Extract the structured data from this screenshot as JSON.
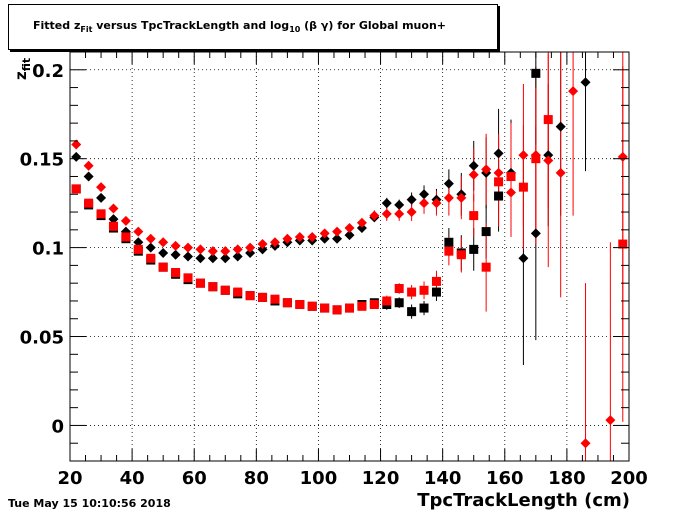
{
  "title_parts": {
    "a": "Fitted  z",
    "a_sub": "Fit",
    "b": "  versus TpcTrackLength and log",
    "b_sub": "10",
    "c": " (β γ) for Global muon+"
  },
  "timestamp": "Tue May 15 10:10:56 2018",
  "chart_data": {
    "type": "scatter",
    "title": "Fitted  zFit  versus TpcTrackLength and log10 (β γ) for Global muon+",
    "xlabel": "TpcTrackLength (cm)",
    "ylabel": "z_fit",
    "xlim": [
      20,
      200
    ],
    "ylim": [
      -0.02,
      0.21
    ],
    "x_ticks": [
      20,
      40,
      60,
      80,
      100,
      120,
      140,
      160,
      180,
      200
    ],
    "x_tick_labels": [
      "20",
      "40",
      "60",
      "80",
      "100",
      "120",
      "140",
      "160",
      "180",
      "200"
    ],
    "y_ticks": [
      0,
      0.05,
      0.1,
      0.15,
      0.2
    ],
    "y_tick_labels": [
      "0",
      "0.05",
      "0.1",
      "0.15",
      "0.2"
    ],
    "grid": true,
    "series": [
      {
        "marker": "diamond",
        "color": "#000000",
        "points": [
          [
            22,
            0.151,
            0.001
          ],
          [
            26,
            0.14,
            0.001
          ],
          [
            30,
            0.128,
            0.001
          ],
          [
            34,
            0.116,
            0.001
          ],
          [
            38,
            0.109,
            0.001
          ],
          [
            42,
            0.103,
            0.001
          ],
          [
            46,
            0.1,
            0.001
          ],
          [
            50,
            0.097,
            0.001
          ],
          [
            54,
            0.096,
            0.001
          ],
          [
            58,
            0.095,
            0.001
          ],
          [
            62,
            0.094,
            0.001
          ],
          [
            66,
            0.094,
            0.001
          ],
          [
            70,
            0.094,
            0.001
          ],
          [
            74,
            0.095,
            0.001
          ],
          [
            78,
            0.097,
            0.001
          ],
          [
            82,
            0.099,
            0.001
          ],
          [
            86,
            0.101,
            0.001
          ],
          [
            90,
            0.103,
            0.001
          ],
          [
            94,
            0.104,
            0.001
          ],
          [
            98,
            0.104,
            0.001
          ],
          [
            102,
            0.105,
            0.001
          ],
          [
            106,
            0.105,
            0.001
          ],
          [
            110,
            0.107,
            0.001
          ],
          [
            114,
            0.111,
            0.002
          ],
          [
            118,
            0.117,
            0.002
          ],
          [
            122,
            0.125,
            0.003
          ],
          [
            126,
            0.124,
            0.003
          ],
          [
            130,
            0.127,
            0.004
          ],
          [
            134,
            0.13,
            0.005
          ],
          [
            138,
            0.127,
            0.006
          ],
          [
            142,
            0.136,
            0.008
          ],
          [
            146,
            0.13,
            0.012
          ],
          [
            150,
            0.146,
            0.014
          ],
          [
            154,
            0.142,
            0.02
          ],
          [
            158,
            0.153,
            0.025
          ],
          [
            162,
            0.142,
            0.03
          ],
          [
            166,
            0.094,
            0.06
          ],
          [
            170,
            0.108,
            0.06
          ],
          [
            174,
            0.152,
            0.04
          ],
          [
            178,
            0.168,
            0.05
          ],
          [
            186,
            0.193,
            0.05
          ]
        ]
      },
      {
        "marker": "diamond",
        "color": "#ff0000",
        "points": [
          [
            22,
            0.158,
            0.001
          ],
          [
            26,
            0.146,
            0.001
          ],
          [
            30,
            0.134,
            0.001
          ],
          [
            34,
            0.122,
            0.001
          ],
          [
            38,
            0.115,
            0.001
          ],
          [
            42,
            0.109,
            0.001
          ],
          [
            46,
            0.105,
            0.001
          ],
          [
            50,
            0.103,
            0.001
          ],
          [
            54,
            0.101,
            0.001
          ],
          [
            58,
            0.1,
            0.001
          ],
          [
            62,
            0.099,
            0.001
          ],
          [
            66,
            0.098,
            0.001
          ],
          [
            70,
            0.098,
            0.001
          ],
          [
            74,
            0.099,
            0.001
          ],
          [
            78,
            0.1,
            0.001
          ],
          [
            82,
            0.102,
            0.001
          ],
          [
            86,
            0.103,
            0.001
          ],
          [
            90,
            0.105,
            0.001
          ],
          [
            94,
            0.106,
            0.001
          ],
          [
            98,
            0.106,
            0.001
          ],
          [
            102,
            0.108,
            0.001
          ],
          [
            106,
            0.109,
            0.001
          ],
          [
            110,
            0.111,
            0.002
          ],
          [
            114,
            0.114,
            0.002
          ],
          [
            118,
            0.118,
            0.003
          ],
          [
            122,
            0.119,
            0.004
          ],
          [
            126,
            0.119,
            0.004
          ],
          [
            130,
            0.12,
            0.005
          ],
          [
            134,
            0.125,
            0.006
          ],
          [
            138,
            0.125,
            0.007
          ],
          [
            142,
            0.128,
            0.01
          ],
          [
            146,
            0.128,
            0.012
          ],
          [
            150,
            0.141,
            0.015
          ],
          [
            154,
            0.144,
            0.02
          ],
          [
            158,
            0.142,
            0.022
          ],
          [
            162,
            0.131,
            0.025
          ],
          [
            166,
            0.152,
            0.04
          ],
          [
            170,
            0.152,
            0.05
          ],
          [
            174,
            0.149,
            0.06
          ],
          [
            178,
            0.142,
            0.07
          ],
          [
            182,
            0.188,
            0.07
          ],
          [
            186,
            -0.01,
            0.09
          ],
          [
            194,
            0.003,
            0.1
          ],
          [
            198,
            0.151,
            0.1
          ]
        ]
      },
      {
        "marker": "square",
        "color": "#000000",
        "points": [
          [
            22,
            0.133,
            0.001
          ],
          [
            26,
            0.124,
            0.001
          ],
          [
            30,
            0.118,
            0.001
          ],
          [
            34,
            0.111,
            0.001
          ],
          [
            38,
            0.105,
            0.001
          ],
          [
            42,
            0.098,
            0.001
          ],
          [
            46,
            0.093,
            0.001
          ],
          [
            50,
            0.089,
            0.001
          ],
          [
            54,
            0.085,
            0.001
          ],
          [
            58,
            0.082,
            0.001
          ],
          [
            62,
            0.08,
            0.001
          ],
          [
            66,
            0.078,
            0.001
          ],
          [
            70,
            0.076,
            0.001
          ],
          [
            74,
            0.074,
            0.001
          ],
          [
            78,
            0.073,
            0.001
          ],
          [
            82,
            0.072,
            0.001
          ],
          [
            86,
            0.07,
            0.001
          ],
          [
            90,
            0.069,
            0.001
          ],
          [
            94,
            0.068,
            0.001
          ],
          [
            98,
            0.067,
            0.001
          ],
          [
            102,
            0.066,
            0.001
          ],
          [
            106,
            0.065,
            0.001
          ],
          [
            110,
            0.066,
            0.001
          ],
          [
            114,
            0.068,
            0.002
          ],
          [
            118,
            0.069,
            0.002
          ],
          [
            122,
            0.068,
            0.003
          ],
          [
            126,
            0.069,
            0.003
          ],
          [
            130,
            0.064,
            0.004
          ],
          [
            134,
            0.066,
            0.004
          ],
          [
            138,
            0.075,
            0.005
          ],
          [
            142,
            0.103,
            0.008
          ],
          [
            146,
            0.097,
            0.01
          ],
          [
            150,
            0.099,
            0.012
          ],
          [
            154,
            0.109,
            0.015
          ],
          [
            158,
            0.129,
            0.02
          ],
          [
            162,
            0.14,
            0.03
          ],
          [
            170,
            0.198,
            0.04
          ]
        ]
      },
      {
        "marker": "square",
        "color": "#ff0000",
        "points": [
          [
            22,
            0.133,
            0.001
          ],
          [
            26,
            0.125,
            0.001
          ],
          [
            30,
            0.119,
            0.001
          ],
          [
            34,
            0.112,
            0.001
          ],
          [
            38,
            0.106,
            0.001
          ],
          [
            42,
            0.099,
            0.001
          ],
          [
            46,
            0.094,
            0.001
          ],
          [
            50,
            0.089,
            0.001
          ],
          [
            54,
            0.086,
            0.001
          ],
          [
            58,
            0.083,
            0.001
          ],
          [
            62,
            0.08,
            0.001
          ],
          [
            66,
            0.078,
            0.001
          ],
          [
            70,
            0.076,
            0.001
          ],
          [
            74,
            0.075,
            0.001
          ],
          [
            78,
            0.073,
            0.001
          ],
          [
            82,
            0.072,
            0.001
          ],
          [
            86,
            0.071,
            0.001
          ],
          [
            90,
            0.069,
            0.001
          ],
          [
            94,
            0.068,
            0.001
          ],
          [
            98,
            0.067,
            0.001
          ],
          [
            102,
            0.066,
            0.001
          ],
          [
            106,
            0.065,
            0.001
          ],
          [
            110,
            0.066,
            0.001
          ],
          [
            114,
            0.067,
            0.002
          ],
          [
            118,
            0.068,
            0.002
          ],
          [
            122,
            0.07,
            0.003
          ],
          [
            126,
            0.077,
            0.003
          ],
          [
            130,
            0.075,
            0.004
          ],
          [
            134,
            0.076,
            0.005
          ],
          [
            138,
            0.081,
            0.006
          ],
          [
            142,
            0.098,
            0.008
          ],
          [
            146,
            0.096,
            0.01
          ],
          [
            150,
            0.118,
            0.012
          ],
          [
            154,
            0.089,
            0.025
          ],
          [
            158,
            0.137,
            0.025
          ],
          [
            162,
            0.14,
            0.03
          ],
          [
            166,
            0.134,
            0.035
          ],
          [
            170,
            0.15,
            0.04
          ],
          [
            174,
            0.172,
            0.05
          ],
          [
            198,
            0.102,
            0.1
          ]
        ]
      }
    ]
  }
}
